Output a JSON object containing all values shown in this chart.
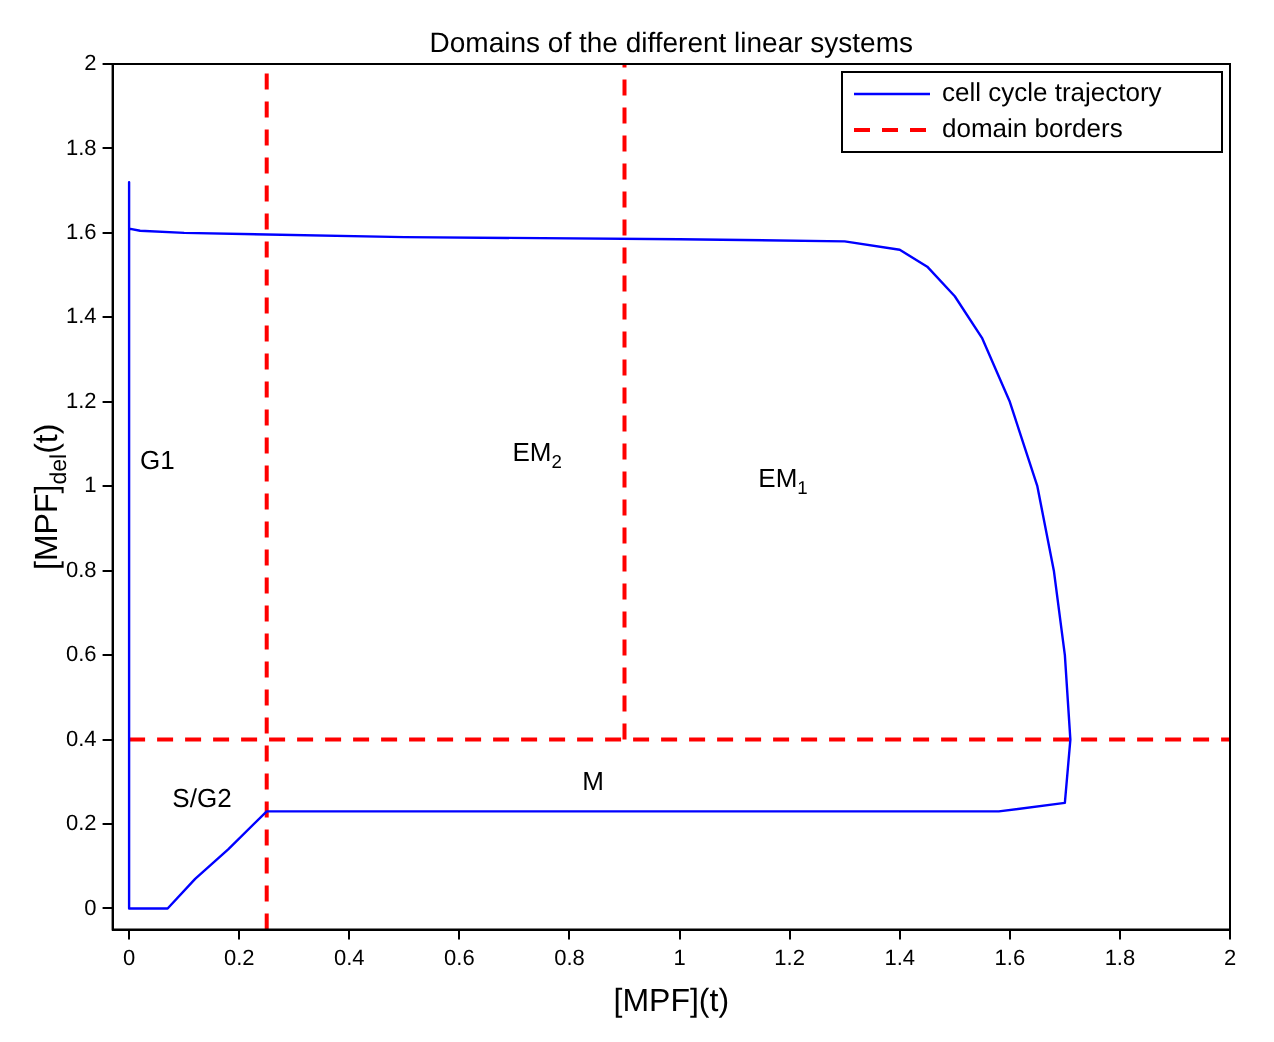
{
  "chart_data": {
    "type": "line",
    "title": "Domains of the different linear systems",
    "xlabel": "[MPF](t)",
    "ylabel": "[MPF]$_{del}$(t)",
    "xlim": [
      -0.03,
      2
    ],
    "ylim": [
      -0.05,
      2
    ],
    "xticks": [
      0,
      0.2,
      0.4,
      0.6,
      0.8,
      1,
      1.2,
      1.4,
      1.6,
      1.8,
      2
    ],
    "yticks": [
      0,
      0.2,
      0.4,
      0.6,
      0.8,
      1,
      1.2,
      1.4,
      1.6,
      1.8,
      2
    ],
    "grid": false,
    "legend": "top right",
    "marker": "none",
    "series": [
      {
        "name": "cell cycle trajectory",
        "color": "#0000ff",
        "line_style": "solid",
        "x": [
          0,
          0,
          0.07,
          0.12,
          0.18,
          0.25,
          1.58,
          1.7,
          1.71,
          1.7,
          1.68,
          1.65,
          1.6,
          1.55,
          1.5,
          1.45,
          1.4,
          1.3,
          1.0,
          0.5,
          0.1,
          0.02,
          0
        ],
        "values": [
          1.72,
          0,
          0,
          0.07,
          0.14,
          0.23,
          0.23,
          0.25,
          0.4,
          0.6,
          0.8,
          1.0,
          1.2,
          1.35,
          1.45,
          1.52,
          1.56,
          1.58,
          1.585,
          1.59,
          1.6,
          1.605,
          1.61
        ]
      },
      {
        "name": "domain borders",
        "color": "#ff0000",
        "line_style": "dashed",
        "x": [
          0.25,
          0.25,
          null,
          0,
          2,
          null,
          0.9,
          0.9
        ],
        "values": [
          -0.05,
          2,
          null,
          0.4,
          0.4,
          null,
          0.4,
          2
        ]
      }
    ],
    "annotations": [
      "G1",
      "EM$_{2}$",
      "EM$_{1}$",
      "M",
      "S/G2"
    ]
  }
}
